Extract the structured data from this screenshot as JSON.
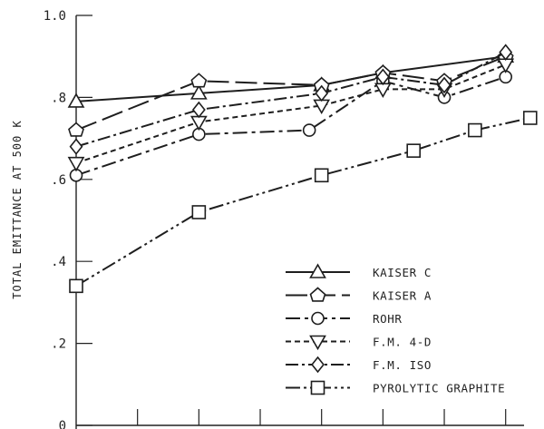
{
  "chart_data": {
    "type": "line",
    "ylabel": "TOTAL EMITTANCE AT 500 K",
    "xlabel": "",
    "ylim": [
      0,
      1.0
    ],
    "y_ticks": [
      {
        "value": 0,
        "label": "0"
      },
      {
        "value": 0.2,
        "label": ".2"
      },
      {
        "value": 0.4,
        "label": ".4"
      },
      {
        "value": 0.6,
        "label": ".6"
      },
      {
        "value": 0.8,
        "label": ".8"
      },
      {
        "value": 1.0,
        "label": "1.0"
      }
    ],
    "x_ticks": [
      1,
      2,
      3,
      4,
      5,
      6,
      7
    ],
    "xlim": [
      0,
      7.3
    ],
    "legend_position": "bottom-right",
    "series": [
      {
        "name": "KAISER C",
        "marker": "triangle-up",
        "dash": "",
        "x": [
          0,
          2,
          4,
          5,
          7
        ],
        "y": [
          0.79,
          0.81,
          0.83,
          0.86,
          0.9
        ]
      },
      {
        "name": "KAISER A",
        "marker": "pentagon",
        "dash": "24 7",
        "x": [
          0,
          2,
          4,
          5,
          6,
          7
        ],
        "y": [
          0.72,
          0.84,
          0.83,
          0.86,
          0.84,
          0.9
        ]
      },
      {
        "name": "ROHR",
        "marker": "circle",
        "dash": "16 5 4 5",
        "x": [
          0,
          2,
          3.8,
          5,
          6,
          7
        ],
        "y": [
          0.61,
          0.71,
          0.72,
          0.84,
          0.8,
          0.85
        ]
      },
      {
        "name": "F.M. 4-D",
        "marker": "triangle-down",
        "dash": "6 4",
        "x": [
          0,
          2,
          4,
          5,
          6,
          7
        ],
        "y": [
          0.64,
          0.74,
          0.78,
          0.82,
          0.82,
          0.88
        ]
      },
      {
        "name": "F.M. ISO",
        "marker": "diamond",
        "dash": "14 4 3 4",
        "x": [
          0,
          2,
          4,
          5,
          6,
          7
        ],
        "y": [
          0.68,
          0.77,
          0.81,
          0.85,
          0.83,
          0.91
        ]
      },
      {
        "name": "PYROLYTIC GRAPHITE",
        "marker": "square",
        "dash": "16 4 3 4 3 4",
        "x": [
          0,
          2,
          4,
          5.5,
          6.5,
          7.4
        ],
        "y": [
          0.34,
          0.52,
          0.61,
          0.67,
          0.72,
          0.75
        ]
      }
    ]
  }
}
